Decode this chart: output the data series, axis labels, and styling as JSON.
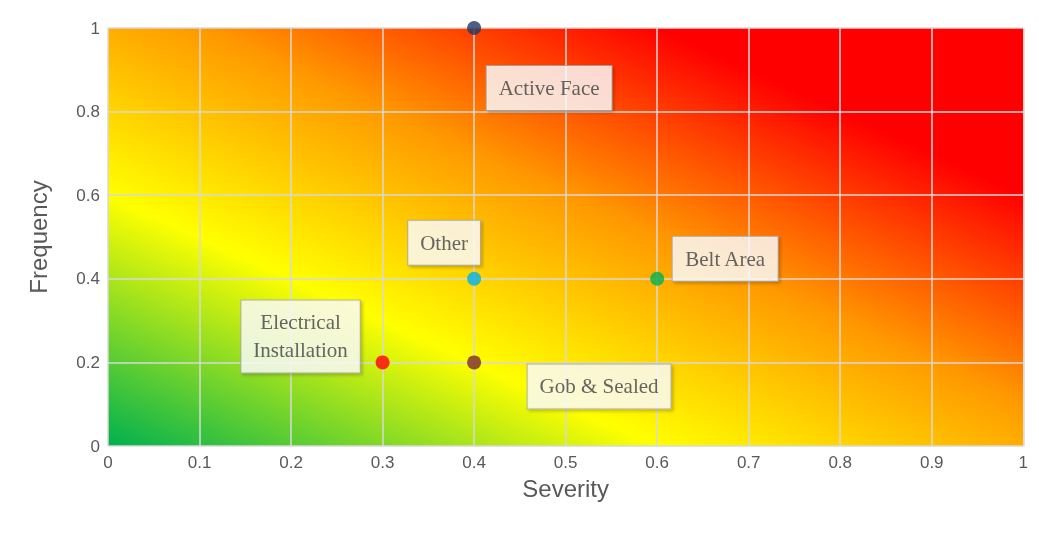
{
  "chart_data": {
    "type": "scatter",
    "xlabel": "Severity",
    "ylabel": "Frequency",
    "series": [
      {
        "name": "Active Face",
        "color": "#203864",
        "x": [
          0.4
        ],
        "values": [
          1
        ]
      },
      {
        "name": "Other",
        "color": "#00b0f0",
        "x": [
          0.4
        ],
        "values": [
          0.4
        ]
      },
      {
        "name": "Belt Area",
        "color": "#00b050",
        "x": [
          0.6
        ],
        "values": [
          0.4
        ]
      },
      {
        "name": "Electrical\nInstallation",
        "color": "#ff0000",
        "x": [
          0.3
        ],
        "values": [
          0.2
        ]
      },
      {
        "name": "Gob & Sealed",
        "color": "#7b2c2c",
        "x": [
          0.4
        ],
        "values": [
          0.2
        ]
      }
    ],
    "xlim": [
      0,
      1
    ],
    "xticks": [
      0,
      0.1,
      0.2,
      0.3,
      0.4,
      0.5,
      0.6,
      0.7,
      0.8,
      0.9,
      1
    ],
    "ylim": [
      0,
      1
    ],
    "yticks": [
      0,
      0.2,
      0.4,
      0.6,
      0.8,
      1
    ],
    "grid": true,
    "legend": false,
    "marker": "circle"
  }
}
